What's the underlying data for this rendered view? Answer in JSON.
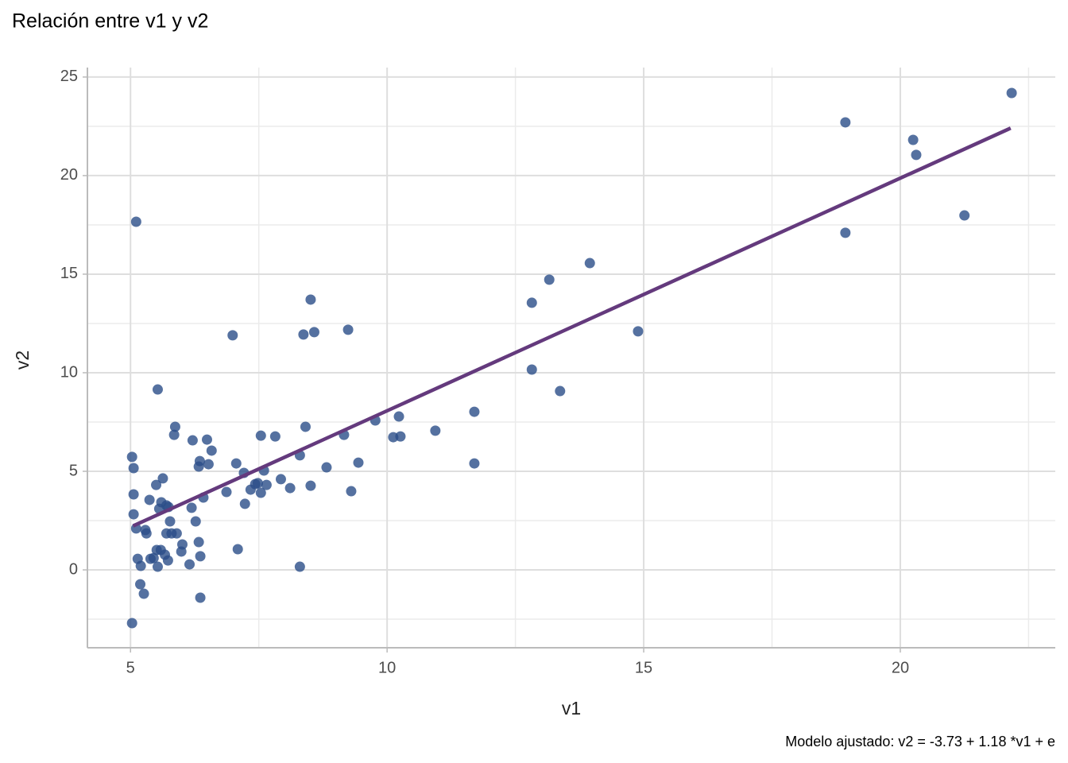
{
  "chart_data": {
    "type": "scatter",
    "title": "Relación entre v1 y v2",
    "x_label": "v1",
    "y_label": "v2",
    "caption": "Modelo ajustado: v2 =  -3.73  +  1.18 *v1 + e",
    "color": "#2a4d88",
    "line_color": "#643a7d",
    "grid": true,
    "xlim": [
      4.16,
      23.02
    ],
    "ylim": [
      -3.95,
      25.48
    ],
    "xticks": [
      5,
      10,
      15,
      20
    ],
    "yticks": [
      0,
      5,
      10,
      15,
      20,
      25
    ],
    "x_minor_ticks": [
      7.5,
      12.5,
      17.5,
      22.5
    ],
    "y_minor_ticks": [
      -2.5,
      2.5,
      7.5,
      12.5,
      17.5,
      22.5
    ],
    "fit": {
      "intercept": -3.73,
      "slope": 1.18,
      "x_range": [
        5.05,
        22.15
      ]
    },
    "x": [
      22.17,
      18.93,
      20.25,
      20.31,
      21.25,
      18.93,
      13.95,
      13.16,
      12.82,
      14.89,
      12.82,
      13.37,
      5.11,
      8.51,
      6.99,
      8.37,
      8.58,
      9.24,
      5.53,
      11.7,
      10.23,
      9.77,
      10.94,
      8.41,
      9.16,
      10.12,
      10.26,
      7.54,
      7.82,
      5.87,
      5.85,
      6.21,
      6.49,
      6.58,
      5.03,
      5.06,
      6.35,
      6.52,
      6.33,
      7.06,
      7.21,
      7.6,
      8.82,
      9.44,
      11.7,
      5.63,
      5.5,
      7.93,
      7.43,
      7.48,
      7.65,
      7.34,
      8.11,
      8.51,
      8.3,
      6.87,
      7.54,
      9.3,
      6.42,
      5.06,
      5.37,
      5.6,
      5.7,
      5.74,
      5.56,
      6.19,
      7.23,
      5.06,
      5.77,
      6.27,
      5.11,
      5.29,
      5.31,
      5.7,
      5.8,
      5.9,
      6.01,
      6.33,
      7.09,
      5.51,
      5.59,
      5.99,
      5.67,
      5.45,
      5.39,
      5.14,
      5.73,
      6.36,
      5.2,
      5.53,
      6.15,
      8.3,
      5.19,
      5.26,
      6.36,
      5.03
    ],
    "values": [
      24.19,
      22.7,
      21.81,
      21.05,
      17.98,
      17.1,
      15.56,
      14.72,
      13.55,
      12.1,
      10.16,
      9.07,
      17.66,
      13.71,
      11.9,
      11.94,
      12.06,
      12.18,
      9.15,
      8.02,
      7.78,
      7.58,
      7.06,
      7.26,
      6.85,
      6.73,
      6.77,
      6.81,
      6.77,
      7.26,
      6.85,
      6.57,
      6.61,
      6.05,
      5.73,
      5.16,
      5.52,
      5.36,
      5.24,
      5.4,
      4.92,
      5.04,
      5.2,
      5.44,
      5.4,
      4.64,
      4.31,
      4.6,
      4.35,
      4.4,
      4.31,
      4.07,
      4.15,
      4.27,
      5.81,
      3.95,
      3.91,
      3.99,
      3.67,
      3.83,
      3.55,
      3.43,
      3.27,
      3.19,
      3.1,
      3.15,
      3.35,
      2.82,
      2.46,
      2.46,
      2.1,
      2.02,
      1.85,
      1.85,
      1.85,
      1.85,
      1.29,
      1.41,
      1.05,
      1.01,
      1.01,
      0.93,
      0.77,
      0.6,
      0.56,
      0.56,
      0.48,
      0.69,
      0.2,
      0.16,
      0.28,
      0.16,
      -0.73,
      -1.21,
      -1.41,
      -2.7
    ]
  }
}
